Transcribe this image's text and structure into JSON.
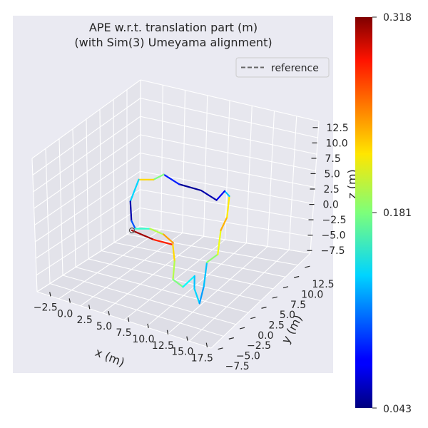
{
  "chart_data": {
    "type": "line",
    "projection": "3d",
    "title_line1": "APE w.r.t. translation part (m)",
    "title_line2": "(with Sim(3) Umeyama alignment)",
    "legend": {
      "label": "reference",
      "placement": "top-right"
    },
    "x_axis": {
      "label": "x (m)",
      "ticks": [
        "−2.5",
        "0.0",
        "2.5",
        "5.0",
        "7.5",
        "10.0",
        "12.5",
        "15.0",
        "17.5"
      ]
    },
    "y_axis": {
      "label": "y (m)",
      "ticks": [
        "−7.5",
        "−5.0",
        "−2.5",
        "0.0",
        "2.5",
        "5.0",
        "7.5",
        "10.0",
        "12.5"
      ]
    },
    "z_axis": {
      "label": "z (m)",
      "ticks": [
        "12.5",
        "10.0",
        "7.5",
        "5.0",
        "2.5",
        "0.0",
        "−2.5",
        "−5.0",
        "−7.5"
      ]
    },
    "colorbar": {
      "colormap": "jet",
      "min": 0.043,
      "mid": 0.181,
      "max": 0.318,
      "tick_labels": [
        "0.318",
        "0.181",
        "0.043"
      ]
    },
    "grid": true,
    "trajectory": [
      {
        "x": 0.0,
        "y": 0.0,
        "z": 0.0,
        "err": 0.318
      },
      {
        "x": 4.0,
        "y": 0.0,
        "z": 0.0,
        "err": 0.3
      },
      {
        "x": 7.5,
        "y": 0.5,
        "z": 0.0,
        "err": 0.25
      },
      {
        "x": 8.5,
        "y": -2.0,
        "z": 0.0,
        "err": 0.2
      },
      {
        "x": 9.0,
        "y": -5.0,
        "z": 0.0,
        "err": 0.19
      },
      {
        "x": 11.0,
        "y": -5.5,
        "z": 0.0,
        "err": 0.17
      },
      {
        "x": 12.5,
        "y": -3.0,
        "z": 0.0,
        "err": 0.12
      },
      {
        "x": 13.0,
        "y": -5.0,
        "z": 0.0,
        "err": 0.14
      },
      {
        "x": 14.5,
        "y": -7.0,
        "z": 0.0,
        "err": 0.13
      },
      {
        "x": 14.5,
        "y": -4.0,
        "z": 0.0,
        "err": 0.11
      },
      {
        "x": 14.0,
        "y": 0.0,
        "z": 0.0,
        "err": 0.15
      },
      {
        "x": 15.5,
        "y": 2.0,
        "z": 0.0,
        "err": 0.22
      },
      {
        "x": 15.0,
        "y": 6.0,
        "z": 0.0,
        "err": 0.2
      },
      {
        "x": 15.5,
        "y": 8.5,
        "z": 0.0,
        "err": 0.27
      },
      {
        "x": 15.0,
        "y": 12.0,
        "z": 0.0,
        "err": 0.17
      },
      {
        "x": 14.0,
        "y": 12.5,
        "z": 0.0,
        "err": 0.09
      },
      {
        "x": 13.0,
        "y": 10.5,
        "z": 0.0,
        "err": 0.06
      },
      {
        "x": 10.0,
        "y": 11.0,
        "z": 0.0,
        "err": 0.05
      },
      {
        "x": 6.0,
        "y": 10.5,
        "z": 0.0,
        "err": 0.05
      },
      {
        "x": 3.0,
        "y": 11.0,
        "z": 0.0,
        "err": 0.12
      },
      {
        "x": 1.5,
        "y": 9.5,
        "z": 0.0,
        "err": 0.24
      },
      {
        "x": -1.0,
        "y": 8.5,
        "z": 0.0,
        "err": 0.21
      },
      {
        "x": -1.5,
        "y": 4.5,
        "z": 0.0,
        "err": 0.06
      },
      {
        "x": -0.5,
        "y": 1.5,
        "z": 0.0,
        "err": 0.05
      },
      {
        "x": 0.5,
        "y": 0.5,
        "z": 0.0,
        "err": 0.15
      },
      {
        "x": 3.0,
        "y": 1.5,
        "z": 0.0,
        "err": 0.17
      },
      {
        "x": 5.5,
        "y": 1.5,
        "z": 0.0,
        "err": 0.22
      },
      {
        "x": 7.5,
        "y": 0.8,
        "z": 0.0,
        "err": 0.26
      }
    ]
  }
}
